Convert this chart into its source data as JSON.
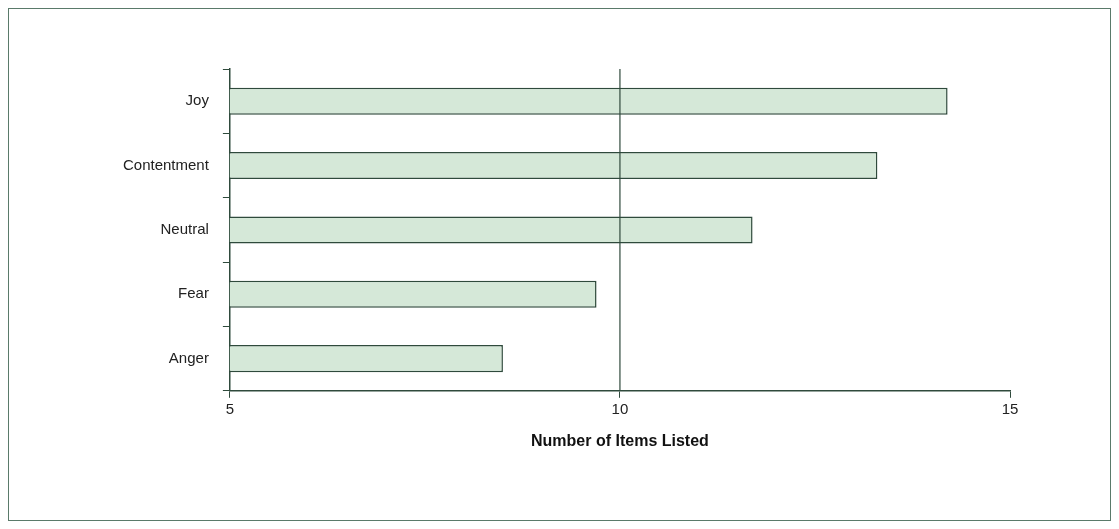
{
  "chart_data": {
    "type": "bar",
    "orientation": "horizontal",
    "xlabel": "Number of Items Listed",
    "categories": [
      "Joy",
      "Contentment",
      "Neutral",
      "Fear",
      "Anger"
    ],
    "values": [
      14.2,
      13.3,
      11.7,
      9.7,
      8.5
    ],
    "color": "#d5e8d8",
    "xlim": [
      5,
      15
    ],
    "xticks": [
      5,
      10,
      15
    ],
    "grid": false,
    "legend": false,
    "ref_lines": [
      {
        "axis": "x",
        "value": 10,
        "color": "#2f4a3c"
      }
    ]
  }
}
